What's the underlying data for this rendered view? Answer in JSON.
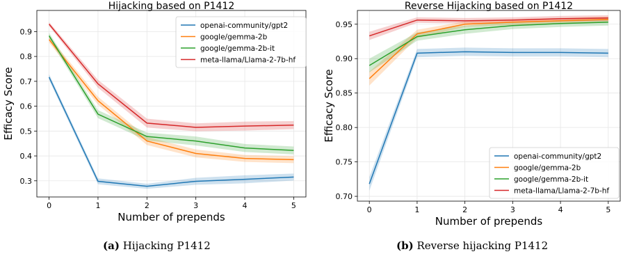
{
  "chart_data": [
    {
      "type": "line",
      "title": "Hijacking based on P1412",
      "xlabel": "Number of prepends",
      "ylabel": "Efficacy Score",
      "x": [
        0,
        1,
        2,
        3,
        4,
        5
      ],
      "xlim": [
        -0.25,
        5.25
      ],
      "ylim": [
        0.235,
        0.985
      ],
      "xticks": [
        0,
        1,
        2,
        3,
        4,
        5
      ],
      "yticks": [
        0.3,
        0.4,
        0.5,
        0.6,
        0.7,
        0.8,
        0.9
      ],
      "grid": true,
      "legend_position": "top-right",
      "series": [
        {
          "name": "openai-community/gpt2",
          "color": "#1f77b4",
          "values": [
            0.717,
            0.298,
            0.278,
            0.298,
            0.306,
            0.315
          ],
          "band": [
            0.012,
            0.012,
            0.01,
            0.014,
            0.016,
            0.014
          ]
        },
        {
          "name": "google/gemma-2b",
          "color": "#ff7f0e",
          "values": [
            0.868,
            0.622,
            0.46,
            0.41,
            0.39,
            0.385
          ],
          "band": [
            0.012,
            0.016,
            0.016,
            0.016,
            0.014,
            0.014
          ]
        },
        {
          "name": "google/gemma-2b-it",
          "color": "#2ca02c",
          "values": [
            0.883,
            0.568,
            0.478,
            0.46,
            0.432,
            0.422
          ],
          "band": [
            0.012,
            0.016,
            0.016,
            0.018,
            0.016,
            0.016
          ]
        },
        {
          "name": "meta-llama/Llama-2-7b-hf",
          "color": "#d62728",
          "values": [
            0.93,
            0.69,
            0.532,
            0.515,
            0.52,
            0.524
          ],
          "band": [
            0.008,
            0.016,
            0.018,
            0.016,
            0.018,
            0.016
          ]
        }
      ]
    },
    {
      "type": "line",
      "title": "Reverse Hijacking based on P1412",
      "xlabel": "Number of prepends",
      "ylabel": "Efficacy Score",
      "x": [
        0,
        1,
        2,
        3,
        4,
        5
      ],
      "xlim": [
        -0.25,
        5.25
      ],
      "ylim": [
        0.693,
        0.97
      ],
      "xticks": [
        0,
        1,
        2,
        3,
        4,
        5
      ],
      "yticks": [
        0.7,
        0.75,
        0.8,
        0.85,
        0.9,
        0.95
      ],
      "grid": true,
      "legend_position": "bottom-right",
      "series": [
        {
          "name": "openai-community/gpt2",
          "color": "#1f77b4",
          "values": [
            0.718,
            0.908,
            0.91,
            0.909,
            0.909,
            0.908
          ],
          "band": [
            0.01,
            0.006,
            0.006,
            0.006,
            0.006,
            0.006
          ]
        },
        {
          "name": "google/gemma-2b",
          "color": "#ff7f0e",
          "values": [
            0.871,
            0.936,
            0.95,
            0.953,
            0.955,
            0.957
          ],
          "band": [
            0.01,
            0.006,
            0.004,
            0.004,
            0.004,
            0.004
          ]
        },
        {
          "name": "google/gemma-2b-it",
          "color": "#2ca02c",
          "values": [
            0.89,
            0.932,
            0.942,
            0.948,
            0.951,
            0.953
          ],
          "band": [
            0.01,
            0.006,
            0.006,
            0.005,
            0.005,
            0.005
          ]
        },
        {
          "name": "meta-llama/Llama-2-7b-hf",
          "color": "#d62728",
          "values": [
            0.933,
            0.956,
            0.955,
            0.956,
            0.958,
            0.959
          ],
          "band": [
            0.006,
            0.004,
            0.004,
            0.004,
            0.004,
            0.004
          ]
        }
      ]
    }
  ],
  "captions": [
    {
      "label": "(a)",
      "text": "Hijacking P1412"
    },
    {
      "label": "(b)",
      "text": "Reverse hijacking P1412"
    }
  ]
}
